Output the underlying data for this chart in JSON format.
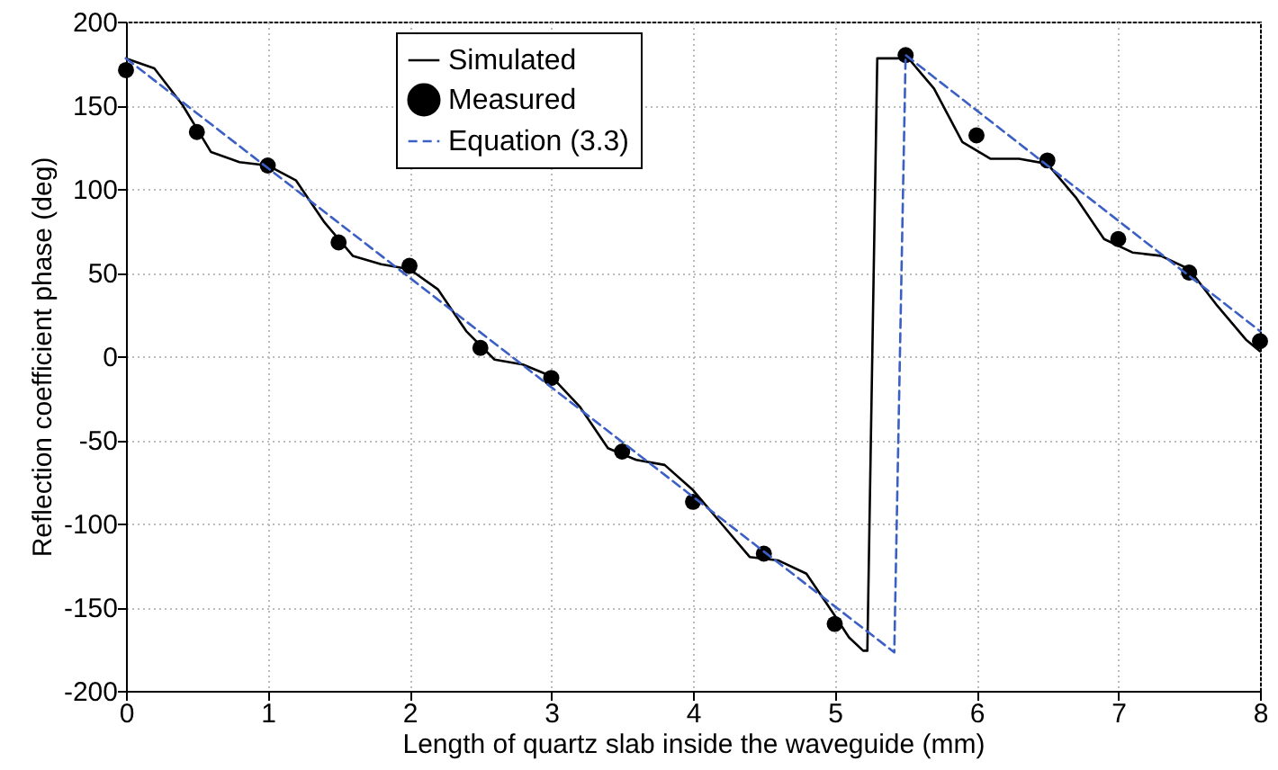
{
  "chart_data": {
    "type": "line",
    "xlabel": "Length of quartz slab inside the waveguide (mm)",
    "ylabel": "Reflection coefficient phase (deg)",
    "xlim": [
      0,
      8
    ],
    "ylim": [
      -200,
      200
    ],
    "xticks": [
      0,
      1,
      2,
      3,
      4,
      5,
      6,
      7,
      8
    ],
    "yticks": [
      -200,
      -150,
      -100,
      -50,
      0,
      50,
      100,
      150,
      200
    ],
    "grid": true,
    "legend": "top left",
    "series": [
      {
        "name": "Simulated",
        "color": "#000000",
        "line_style": "solid",
        "x": [
          0,
          0.2,
          0.4,
          0.6,
          0.8,
          1.0,
          1.2,
          1.4,
          1.6,
          1.8,
          2.0,
          2.2,
          2.4,
          2.6,
          2.8,
          3.0,
          3.2,
          3.4,
          3.6,
          3.8,
          4.0,
          4.2,
          4.4,
          4.6,
          4.8,
          5.0,
          5.1,
          5.2,
          5.23,
          5.3,
          5.45,
          5.5,
          5.7,
          5.9,
          6.1,
          6.3,
          6.5,
          6.7,
          6.9,
          7.1,
          7.3,
          7.5,
          7.7,
          7.9,
          8
        ],
        "values": [
          178,
          172,
          150,
          122,
          116,
          114,
          105,
          80,
          60,
          55,
          52,
          40,
          15,
          -2,
          -5,
          -12,
          -30,
          -55,
          -62,
          -65,
          -80,
          -100,
          -120,
          -122,
          -130,
          -155,
          -168,
          -176,
          -176,
          178,
          178,
          180,
          160,
          128,
          118,
          118,
          115,
          95,
          70,
          62,
          60,
          52,
          30,
          10,
          3
        ]
      },
      {
        "name": "Measured",
        "type": "scatter",
        "color": "#000000",
        "marker": "circle",
        "x": [
          0,
          0.5,
          1,
          1.5,
          2,
          2.5,
          3,
          3.5,
          4,
          4.5,
          5,
          5.5,
          6,
          6.5,
          7,
          7.5,
          8
        ],
        "values": [
          171,
          134,
          114,
          68,
          54,
          5,
          -13,
          -57,
          -87,
          -118,
          -160,
          180,
          132,
          117,
          70,
          50,
          9
        ]
      },
      {
        "name": "Equation (3.3)",
        "color": "#3b5fc4",
        "line_style": "dashed",
        "x": [
          0,
          5.42,
          5.5,
          8
        ],
        "values": [
          178,
          -177,
          180,
          15
        ]
      }
    ]
  }
}
